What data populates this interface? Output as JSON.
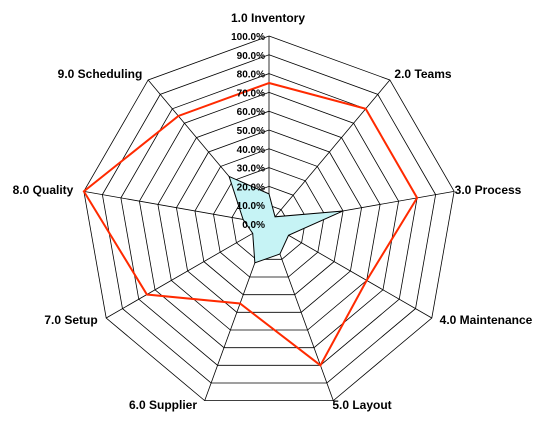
{
  "chart_data": {
    "type": "radar",
    "categories": [
      "1.0 Inventory",
      "2.0 Teams",
      "3.0 Process",
      "4.0 Maintenance",
      "5.0 Layout",
      "6.0 Supplier",
      "7.0 Setup",
      "8.0 Quality",
      "9.0 Scheduling"
    ],
    "rlim": [
      0,
      100
    ],
    "ticks": [
      "0.0%",
      "10.0%",
      "20.0%",
      "30.0%",
      "40.0%",
      "50.0%",
      "60.0%",
      "70.0%",
      "80.0%",
      "90.0%",
      "100.0%"
    ],
    "grid": true,
    "series": [
      {
        "color": "#ff2a00",
        "fill": "none",
        "values": [
          75,
          80,
          80,
          60,
          80,
          45,
          75,
          100,
          75
        ]
      },
      {
        "color": "#000000",
        "fill": "#c6f3f5",
        "values": [
          16,
          5,
          40,
          12,
          17,
          22,
          10,
          14,
          33
        ]
      }
    ]
  }
}
